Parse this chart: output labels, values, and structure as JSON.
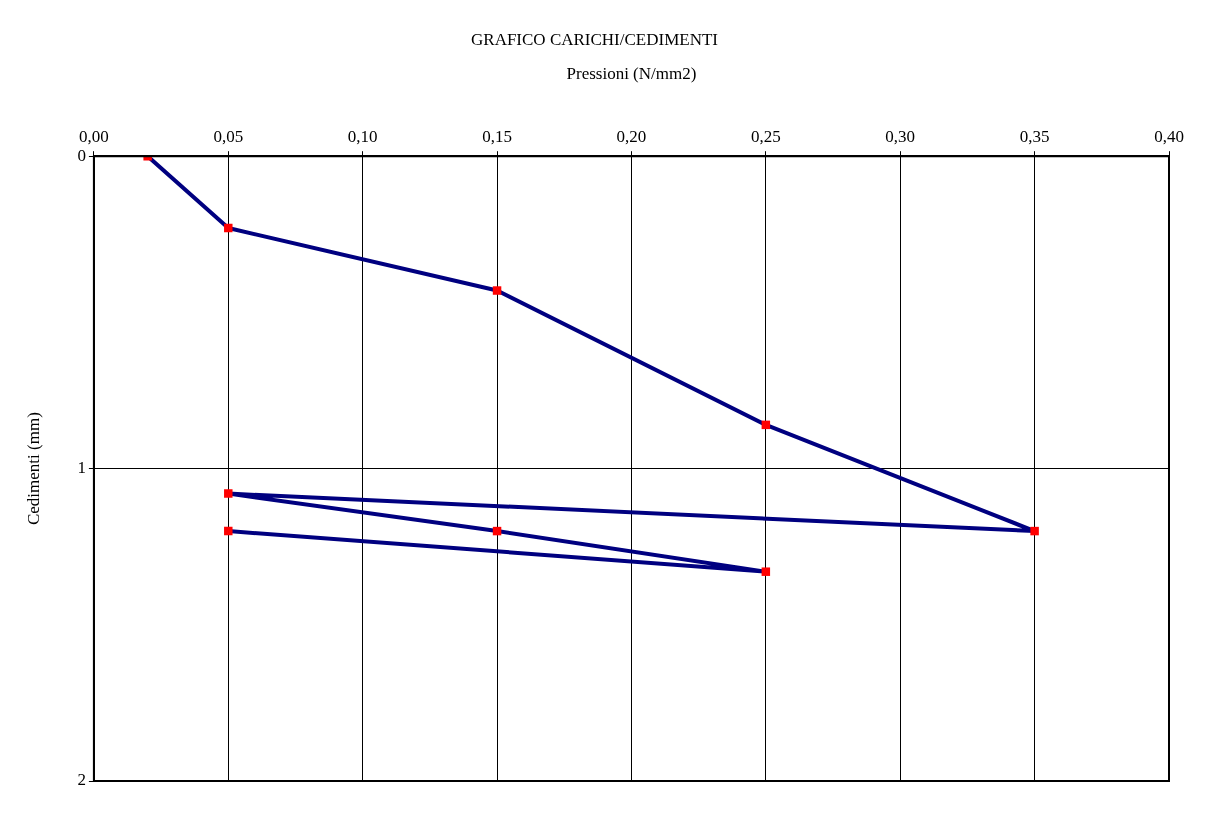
{
  "chart_data": {
    "type": "line",
    "title": "GRAFICO CARICHI/CEDIMENTI",
    "xlabel": "Pressioni (N/mm2)",
    "ylabel": "Cedimenti (mm)",
    "x": [
      0.02,
      0.05,
      0.15,
      0.25,
      0.35,
      0.05,
      0.15,
      0.25,
      0.05
    ],
    "series": [
      {
        "color": "#000080",
        "colors": [
          "#ff0000",
          "#ff0000",
          "#ff0000",
          "#ff0000",
          "#ff0000",
          "#ff0000",
          "#ff0000",
          "#ff0000",
          "#ff0000"
        ],
        "values": [
          0,
          0.23,
          0.43,
          0.86,
          1.2,
          1.08,
          1.2,
          1.33,
          1.2
        ]
      }
    ],
    "xlim": [
      0,
      0.4
    ],
    "xticks": [
      {
        "value": 0,
        "label": "0,00"
      },
      {
        "value": 0.05,
        "label": "0,05"
      },
      {
        "value": 0.1,
        "label": "0,10"
      },
      {
        "value": 0.15,
        "label": "0,15"
      },
      {
        "value": 0.2,
        "label": "0,20"
      },
      {
        "value": 0.25,
        "label": "0,25"
      },
      {
        "value": 0.3,
        "label": "0,30"
      },
      {
        "value": 0.35,
        "label": "0,35"
      },
      {
        "value": 0.4,
        "label": "0,40"
      }
    ],
    "ylim": [
      2,
      0
    ],
    "yticks": [
      0,
      1,
      2
    ],
    "grid": true,
    "legend": false,
    "marker": "square",
    "line_style": "solid"
  }
}
